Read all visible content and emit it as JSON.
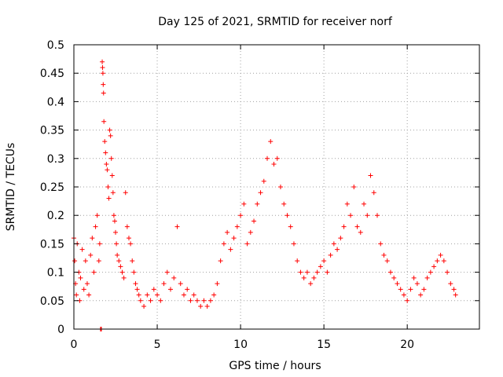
{
  "chart_data": {
    "type": "scatter",
    "title": "Day 125 of 2021, SRMTID for receiver norf",
    "xlabel": "GPS time / hours",
    "ylabel": "SRMTID / TECUs",
    "xlim": [
      0,
      24.33
    ],
    "ylim": [
      0,
      0.5
    ],
    "x_ticks": [
      0,
      5,
      10,
      15,
      20
    ],
    "x_tick_labels": [
      "0",
      "5",
      "10",
      "15",
      "20"
    ],
    "y_ticks": [
      0,
      0.05,
      0.1,
      0.15,
      0.2,
      0.25,
      0.3,
      0.35,
      0.4,
      0.45,
      0.5
    ],
    "y_tick_labels": [
      "0",
      "0.05",
      "0.1",
      "0.15",
      "0.2",
      "0.25",
      "0.3",
      "0.35",
      "0.4",
      "0.45",
      "0.5"
    ],
    "grid": true,
    "marker": "+",
    "color": "#ff0000",
    "series": [
      {
        "name": "SRMTID",
        "points": [
          [
            0.0,
            0.16
          ],
          [
            0.05,
            0.12
          ],
          [
            0.1,
            0.08
          ],
          [
            0.15,
            0.06
          ],
          [
            0.2,
            0.15
          ],
          [
            0.3,
            0.1
          ],
          [
            0.35,
            0.05
          ],
          [
            0.4,
            0.09
          ],
          [
            0.5,
            0.14
          ],
          [
            0.6,
            0.07
          ],
          [
            0.7,
            0.12
          ],
          [
            0.8,
            0.08
          ],
          [
            0.9,
            0.06
          ],
          [
            1.0,
            0.13
          ],
          [
            1.1,
            0.16
          ],
          [
            1.2,
            0.1
          ],
          [
            1.3,
            0.18
          ],
          [
            1.4,
            0.2
          ],
          [
            1.5,
            0.12
          ],
          [
            1.55,
            0.15
          ],
          [
            1.6,
            0.0
          ],
          [
            1.65,
            0.0
          ],
          [
            1.7,
            0.47
          ],
          [
            1.72,
            0.46
          ],
          [
            1.74,
            0.45
          ],
          [
            1.76,
            0.43
          ],
          [
            1.78,
            0.415
          ],
          [
            1.8,
            0.365
          ],
          [
            1.85,
            0.33
          ],
          [
            1.9,
            0.31
          ],
          [
            1.95,
            0.29
          ],
          [
            2.0,
            0.28
          ],
          [
            2.05,
            0.25
          ],
          [
            2.1,
            0.23
          ],
          [
            2.15,
            0.35
          ],
          [
            2.2,
            0.34
          ],
          [
            2.25,
            0.3
          ],
          [
            2.3,
            0.27
          ],
          [
            2.35,
            0.24
          ],
          [
            2.4,
            0.2
          ],
          [
            2.45,
            0.19
          ],
          [
            2.5,
            0.17
          ],
          [
            2.55,
            0.15
          ],
          [
            2.6,
            0.13
          ],
          [
            2.7,
            0.12
          ],
          [
            2.8,
            0.11
          ],
          [
            2.9,
            0.1
          ],
          [
            3.0,
            0.09
          ],
          [
            3.1,
            0.24
          ],
          [
            3.2,
            0.18
          ],
          [
            3.3,
            0.16
          ],
          [
            3.4,
            0.15
          ],
          [
            3.5,
            0.12
          ],
          [
            3.6,
            0.1
          ],
          [
            3.7,
            0.08
          ],
          [
            3.8,
            0.07
          ],
          [
            3.9,
            0.06
          ],
          [
            4.0,
            0.05
          ],
          [
            4.2,
            0.04
          ],
          [
            4.4,
            0.06
          ],
          [
            4.6,
            0.05
          ],
          [
            4.8,
            0.07
          ],
          [
            5.0,
            0.06
          ],
          [
            5.2,
            0.05
          ],
          [
            5.4,
            0.08
          ],
          [
            5.6,
            0.1
          ],
          [
            5.8,
            0.07
          ],
          [
            6.0,
            0.09
          ],
          [
            6.2,
            0.18
          ],
          [
            6.4,
            0.08
          ],
          [
            6.6,
            0.06
          ],
          [
            6.8,
            0.07
          ],
          [
            7.0,
            0.05
          ],
          [
            7.2,
            0.06
          ],
          [
            7.4,
            0.05
          ],
          [
            7.6,
            0.04
          ],
          [
            7.8,
            0.05
          ],
          [
            8.0,
            0.04
          ],
          [
            8.2,
            0.05
          ],
          [
            8.4,
            0.06
          ],
          [
            8.6,
            0.08
          ],
          [
            8.8,
            0.12
          ],
          [
            9.0,
            0.15
          ],
          [
            9.2,
            0.17
          ],
          [
            9.4,
            0.14
          ],
          [
            9.6,
            0.16
          ],
          [
            9.8,
            0.18
          ],
          [
            10.0,
            0.2
          ],
          [
            10.2,
            0.22
          ],
          [
            10.4,
            0.15
          ],
          [
            10.6,
            0.17
          ],
          [
            10.8,
            0.19
          ],
          [
            11.0,
            0.22
          ],
          [
            11.2,
            0.24
          ],
          [
            11.4,
            0.26
          ],
          [
            11.6,
            0.3
          ],
          [
            11.8,
            0.33
          ],
          [
            12.0,
            0.29
          ],
          [
            12.2,
            0.3
          ],
          [
            12.4,
            0.25
          ],
          [
            12.6,
            0.22
          ],
          [
            12.8,
            0.2
          ],
          [
            13.0,
            0.18
          ],
          [
            13.2,
            0.15
          ],
          [
            13.4,
            0.12
          ],
          [
            13.6,
            0.1
          ],
          [
            13.8,
            0.09
          ],
          [
            14.0,
            0.1
          ],
          [
            14.2,
            0.08
          ],
          [
            14.4,
            0.09
          ],
          [
            14.6,
            0.1
          ],
          [
            14.8,
            0.11
          ],
          [
            15.0,
            0.12
          ],
          [
            15.2,
            0.1
          ],
          [
            15.4,
            0.13
          ],
          [
            15.6,
            0.15
          ],
          [
            15.8,
            0.14
          ],
          [
            16.0,
            0.16
          ],
          [
            16.2,
            0.18
          ],
          [
            16.4,
            0.22
          ],
          [
            16.6,
            0.2
          ],
          [
            16.8,
            0.25
          ],
          [
            17.0,
            0.18
          ],
          [
            17.2,
            0.17
          ],
          [
            17.4,
            0.22
          ],
          [
            17.6,
            0.2
          ],
          [
            17.8,
            0.27
          ],
          [
            18.0,
            0.24
          ],
          [
            18.2,
            0.2
          ],
          [
            18.4,
            0.15
          ],
          [
            18.6,
            0.13
          ],
          [
            18.8,
            0.12
          ],
          [
            19.0,
            0.1
          ],
          [
            19.2,
            0.09
          ],
          [
            19.4,
            0.08
          ],
          [
            19.6,
            0.07
          ],
          [
            19.8,
            0.06
          ],
          [
            20.0,
            0.05
          ],
          [
            20.2,
            0.07
          ],
          [
            20.4,
            0.09
          ],
          [
            20.6,
            0.08
          ],
          [
            20.8,
            0.06
          ],
          [
            21.0,
            0.07
          ],
          [
            21.2,
            0.09
          ],
          [
            21.4,
            0.1
          ],
          [
            21.6,
            0.11
          ],
          [
            21.8,
            0.12
          ],
          [
            22.0,
            0.13
          ],
          [
            22.2,
            0.12
          ],
          [
            22.4,
            0.1
          ],
          [
            22.6,
            0.08
          ],
          [
            22.8,
            0.07
          ],
          [
            22.9,
            0.06
          ]
        ]
      }
    ]
  }
}
